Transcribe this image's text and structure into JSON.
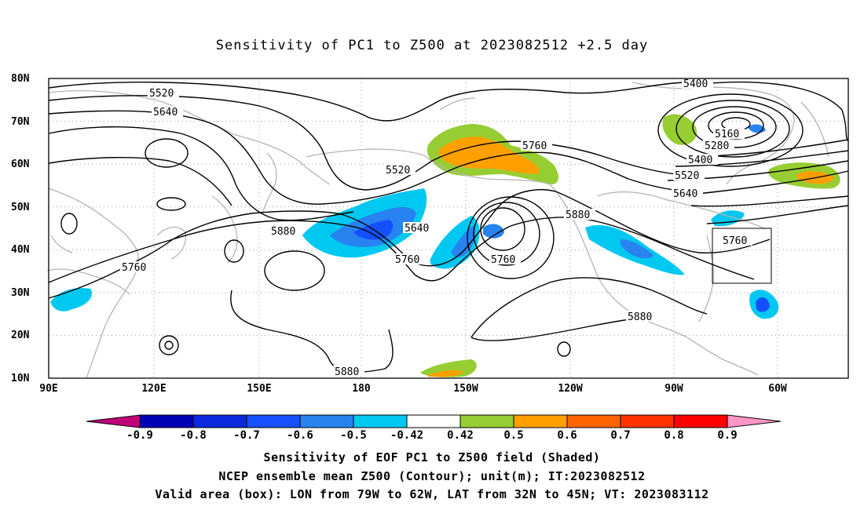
{
  "title": "Sensitivity of PC1 to Z500 at 2023082512 +2.5 day",
  "lat_labels": [
    "80N",
    "70N",
    "60N",
    "50N",
    "40N",
    "30N",
    "20N",
    "10N"
  ],
  "lon_labels": [
    "90E",
    "120E",
    "150E",
    "180",
    "150W",
    "120W",
    "90W",
    "60W"
  ],
  "contour_labels": [
    "5400",
    "5520",
    "5640",
    "5760",
    "5520",
    "5160",
    "5280",
    "5400",
    "5520",
    "5640",
    "5880",
    "5640",
    "5760",
    "5760",
    "5880",
    "5760",
    "5880",
    "5880",
    "5760"
  ],
  "colorbar": {
    "ticks": [
      "-0.9",
      "-0.8",
      "-0.7",
      "-0.6",
      "-0.5",
      "-0.42",
      "0.42",
      "0.5",
      "0.6",
      "0.7",
      "0.8",
      "0.9"
    ],
    "colors": [
      "#c0007a",
      "#0000b4",
      "#0a28dc",
      "#1450ff",
      "#2882f0",
      "#00c8f0",
      "#ffffff",
      "#96cd32",
      "#ffa000",
      "#ff6400",
      "#ff3200",
      "#ff0000",
      "#ff96c8"
    ]
  },
  "captions": [
    "Sensitivity of EOF PC1 to Z500 field (Shaded)",
    "NCEP ensemble mean Z500 (Contour); unit(m); IT:2023082512",
    "Valid area (box): LON from 79W to 62W, LAT from 32N to 45N; VT: 2023083112"
  ],
  "colors": {
    "negative_light": "#00c8f0",
    "negative_mid": "#2882f0",
    "negative_strong": "#1450ff",
    "positive_light": "#96cd32",
    "positive_mid": "#ffa000",
    "coast": "#b4b4b4",
    "contour": "#000000"
  }
}
